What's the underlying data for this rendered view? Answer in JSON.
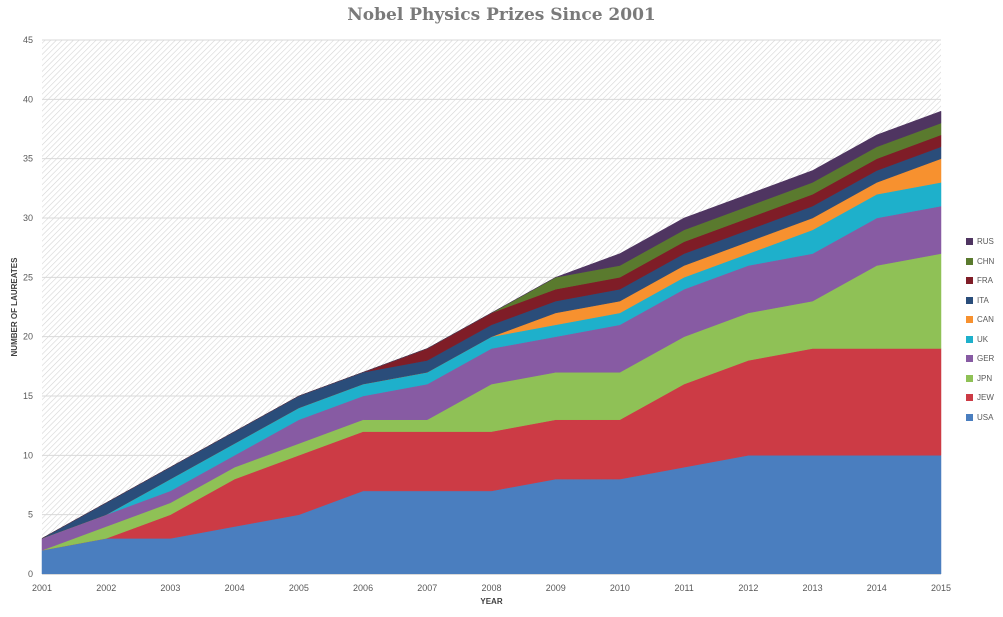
{
  "chart_data": {
    "type": "area",
    "stacked": true,
    "title": "Nobel Physics Prizes Since 2001",
    "xlabel": "YEAR",
    "ylabel": "NUMBER OF LAUREATES",
    "ylim": [
      0,
      45
    ],
    "yticks": [
      0,
      5,
      10,
      15,
      20,
      25,
      30,
      35,
      40,
      45
    ],
    "grid": true,
    "legend_position": "right",
    "categories": [
      "2001",
      "2002",
      "2003",
      "2004",
      "2005",
      "2006",
      "2007",
      "2008",
      "2009",
      "2010",
      "2011",
      "2012",
      "2013",
      "2014",
      "2015"
    ],
    "series": [
      {
        "name": "USA",
        "color": "#4a7ebf",
        "values": [
          2,
          3,
          3,
          4,
          5,
          7,
          7,
          7,
          8,
          8,
          9,
          10,
          10,
          10,
          10
        ]
      },
      {
        "name": "JEW",
        "color": "#cc3b45",
        "values": [
          0,
          0,
          2,
          4,
          5,
          5,
          5,
          5,
          5,
          5,
          7,
          8,
          9,
          9,
          9
        ]
      },
      {
        "name": "JPN",
        "color": "#8fc156",
        "values": [
          0,
          1,
          1,
          1,
          1,
          1,
          1,
          4,
          4,
          4,
          4,
          4,
          4,
          7,
          8
        ]
      },
      {
        "name": "GER",
        "color": "#875ba3",
        "values": [
          1,
          1,
          1,
          1,
          2,
          2,
          3,
          3,
          3,
          4,
          4,
          4,
          4,
          4,
          4
        ]
      },
      {
        "name": "UK",
        "color": "#1eb0cb",
        "values": [
          0,
          0,
          1,
          1,
          1,
          1,
          1,
          1,
          1,
          1,
          1,
          1,
          2,
          2,
          2
        ]
      },
      {
        "name": "CAN",
        "color": "#f7912f",
        "values": [
          0,
          0,
          0,
          0,
          0,
          0,
          0,
          0,
          1,
          1,
          1,
          1,
          1,
          1,
          2
        ]
      },
      {
        "name": "ITA",
        "color": "#2a4d7a",
        "values": [
          0,
          1,
          1,
          1,
          1,
          1,
          1,
          1,
          1,
          1,
          1,
          1,
          1,
          1,
          1
        ]
      },
      {
        "name": "FRA",
        "color": "#7f1d27",
        "values": [
          0,
          0,
          0,
          0,
          0,
          0,
          1,
          1,
          1,
          1,
          1,
          1,
          1,
          1,
          1
        ]
      },
      {
        "name": "CHN",
        "color": "#5a7a2e",
        "values": [
          0,
          0,
          0,
          0,
          0,
          0,
          0,
          0,
          1,
          1,
          1,
          1,
          1,
          1,
          1
        ]
      },
      {
        "name": "RUS",
        "color": "#4f3561",
        "values": [
          0,
          0,
          0,
          0,
          0,
          0,
          0,
          0,
          0,
          1,
          1,
          1,
          1,
          1,
          1
        ]
      }
    ]
  }
}
